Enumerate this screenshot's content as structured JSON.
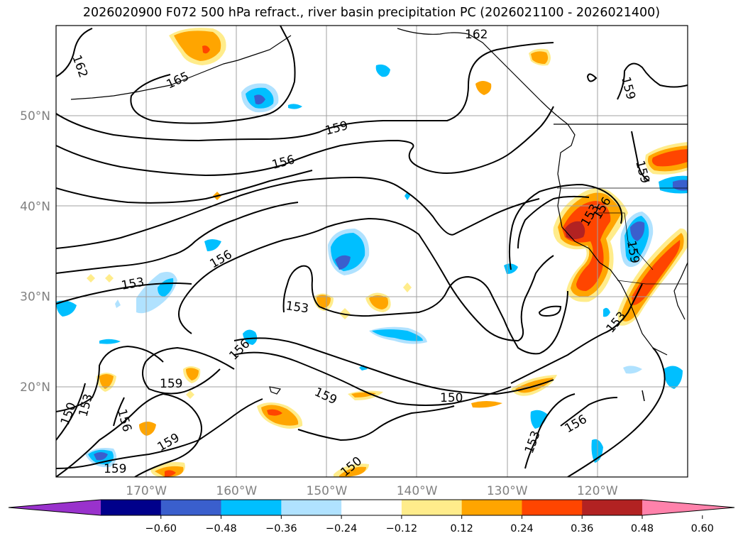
{
  "title": "2026020900 F072 500 hPa refract., river basin precipitation PC (2026021100 - 2026021400)",
  "map": {
    "lat_ticks": [
      {
        "label": "50°N",
        "lat": 50
      },
      {
        "label": "40°N",
        "lat": 40
      },
      {
        "label": "30°N",
        "lat": 30
      },
      {
        "label": "20°N",
        "lat": 20
      }
    ],
    "lon_ticks": [
      {
        "label": "170°W",
        "lon": -170
      },
      {
        "label": "160°W",
        "lon": -160
      },
      {
        "label": "150°W",
        "lon": -150
      },
      {
        "label": "140°W",
        "lon": -140
      },
      {
        "label": "130°W",
        "lon": -130
      },
      {
        "label": "120°W",
        "lon": -120
      }
    ],
    "extent": {
      "lon_min": -180,
      "lon_max": -110,
      "lat_min": 10,
      "lat_max": 60
    },
    "contour_labels": [
      "162",
      "165",
      "162",
      "159",
      "156",
      "159",
      "156",
      "153",
      "153",
      "156",
      "159",
      "159",
      "159",
      "150",
      "153",
      "156",
      "150",
      "153",
      "156",
      "159",
      "153",
      "159",
      "150",
      "153",
      "156",
      "159"
    ]
  },
  "colorbar": {
    "ticks": [
      "−0.60",
      "−0.48",
      "−0.36",
      "−0.24",
      "−0.12",
      "0.12",
      "0.24",
      "0.36",
      "0.48",
      "0.60"
    ],
    "colors": [
      "#9932cc",
      "#00008b",
      "#3a5fcd",
      "#00bfff",
      "#b0e2ff",
      "#ffffff",
      "#ffec8b",
      "#ffa500",
      "#ff4500",
      "#b22222",
      "#ff82ab"
    ]
  }
}
